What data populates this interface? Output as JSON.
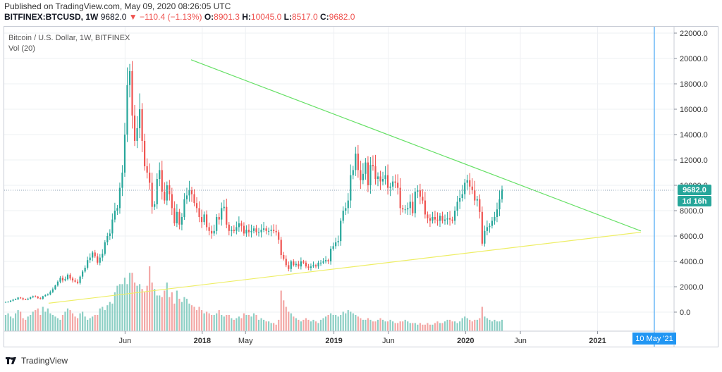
{
  "header": {
    "published": "Published on TradingView.com, May 09, 2020 08:26:05 UTC",
    "symbol": "BITFINEX:BTCUSD, 1W",
    "last": "9682.0",
    "change": "−110.4 (−1.13%)",
    "o_label": "O:",
    "o_val": "8901.3",
    "h_label": "H:",
    "h_val": "10045.0",
    "l_label": "L:",
    "l_val": "8517.0",
    "c_label": "C:",
    "c_val": "9682.0"
  },
  "legend": {
    "title": "Bitcoin / U.S. Dollar, 1W, BITFINEX",
    "vol": "Vol (20)"
  },
  "price_badge": "9682.0",
  "countdown_badge": "1d 16h",
  "cursor_date": "10 May '21",
  "footer": {
    "brand": "TradingView"
  },
  "colors": {
    "up": "#26a69a",
    "down": "#ef5350",
    "up_vol": "#8ccfc4",
    "down_vol": "#f3a7a5",
    "trend_upper": "#66e066",
    "trend_lower": "#eeee66",
    "accent": "#2196f3"
  },
  "chart_data": {
    "type": "candlestick",
    "title": "Bitcoin / U.S. Dollar, 1W, BITFINEX",
    "y_ticks": [
      "22000.0",
      "20000.0",
      "18000.0",
      "16000.0",
      "14000.0",
      "12000.0",
      "10000.0",
      "8000.0",
      "6000.0",
      "4000.0",
      "2000.0",
      "0.0"
    ],
    "x_ticks": [
      "Jun",
      "2018",
      "May",
      "2019",
      "Jun",
      "2020",
      "Jun",
      "2021"
    ],
    "ylim": [
      -1500,
      22500
    ],
    "grid": true,
    "key_points": [
      {
        "date": "2016-11",
        "price": 750
      },
      {
        "date": "2017-06",
        "price": 2700
      },
      {
        "date": "2017-12",
        "price": 19800
      },
      {
        "date": "2018-02",
        "price": 7000
      },
      {
        "date": "2018-06",
        "price": 6200
      },
      {
        "date": "2018-12",
        "price": 3200
      },
      {
        "date": "2019-06",
        "price": 13800
      },
      {
        "date": "2019-12",
        "price": 6500
      },
      {
        "date": "2020-02",
        "price": 10400
      },
      {
        "date": "2020-03",
        "price": 4000
      },
      {
        "date": "2020-05",
        "price": 9682
      }
    ],
    "series": [
      {
        "values": [
          800,
          820,
          900,
          980,
          1000,
          1150,
          1100,
          1000,
          980,
          1050,
          1180,
          1250,
          1200,
          1100,
          1050,
          1250,
          1350,
          1400,
          1600,
          1800,
          2100,
          2400,
          2700,
          2500,
          2600,
          2950,
          2650,
          2500,
          2400,
          2300,
          2800,
          3200,
          3500,
          4100,
          4300,
          4700,
          4400,
          3900,
          4300,
          4600,
          5500,
          6000,
          6200,
          7300,
          8000,
          8200,
          9800,
          11000,
          14000,
          17900,
          19000,
          15500,
          13500,
          14500,
          16000,
          13500,
          11500,
          11000,
          10200,
          8300,
          8500,
          10500,
          11200,
          9500,
          8800,
          10000,
          9300,
          8200,
          7000,
          7900,
          6900,
          7500,
          8900,
          9200,
          9600,
          9300,
          8600,
          8200,
          7500,
          7100,
          7700,
          6700,
          6400,
          6200,
          6400,
          7500,
          7300,
          8200,
          8300,
          6900,
          6400,
          6500,
          6400,
          6700,
          7000,
          6800,
          6200,
          6500,
          6300,
          6400,
          6600,
          6300,
          6300,
          6500,
          6600,
          6400,
          6400,
          6500,
          6400,
          6300,
          5700,
          4500,
          4200,
          3700,
          3400,
          4000,
          3700,
          3800,
          3600,
          4000,
          3900,
          3600,
          3500,
          3600,
          3700,
          3600,
          3900,
          3900,
          4000,
          4100,
          4000,
          5000,
          5200,
          5500,
          5600,
          7200,
          8000,
          8200,
          8800,
          10800,
          11200,
          12500,
          11200,
          10400,
          10900,
          11800,
          10000,
          11600,
          11500,
          10500,
          10700,
          10300,
          10500,
          10800,
          9800,
          9900,
          10300,
          10200,
          9800,
          8200,
          8100,
          8100,
          8200,
          8700,
          7800,
          9500,
          9600,
          9100,
          8800,
          7700,
          7400,
          7200,
          7500,
          7300,
          7200,
          7600,
          7200,
          7300,
          7400,
          7300,
          7200,
          8000,
          8700,
          9000,
          9300,
          10200,
          10400,
          9900,
          9600,
          8800,
          8900,
          7900,
          5400,
          6400,
          6700,
          6800,
          7200,
          7500,
          8100,
          8900,
          9682
        ]
      },
      {
        "name": "Vol (20)",
        "values": [
          1000,
          1100,
          900,
          800,
          1100,
          1300,
          1200,
          800,
          700,
          900,
          1000,
          1200,
          1300,
          1400,
          1000,
          1500,
          1200,
          1400,
          1100,
          1000,
          900,
          800,
          700,
          1000,
          1200,
          1400,
          1300,
          1100,
          900,
          800,
          1100,
          1200,
          900,
          700,
          800,
          900,
          1000,
          1000,
          1400,
          1500,
          1300,
          1600,
          1800,
          1700,
          2400,
          2800,
          2900,
          2900,
          3300,
          2900,
          3600,
          3600,
          3000,
          2800,
          2900,
          2600,
          2400,
          2800,
          4000,
          3000,
          2600,
          2200,
          2200,
          2100,
          2500,
          3000,
          2100,
          2400,
          1700,
          2500,
          2000,
          1800,
          2100,
          2000,
          1700,
          1600,
          1500,
          1300,
          1500,
          1300,
          1100,
          1200,
          1100,
          1000,
          1000,
          1100,
          1300,
          1000,
          900,
          1000,
          1000,
          800,
          700,
          800,
          900,
          800,
          1100,
          1000,
          1000,
          900,
          1100,
          1000,
          700,
          800,
          700,
          600,
          600,
          500,
          500,
          400,
          700,
          2500,
          1900,
          1500,
          1200,
          1100,
          900,
          800,
          700,
          600,
          700,
          800,
          700,
          600,
          700,
          600,
          500,
          700,
          800,
          900,
          1000,
          1100,
          1000,
          1000,
          900,
          1000,
          1200,
          1100,
          1300,
          1200,
          1100,
          1000,
          900,
          800,
          700,
          700,
          800,
          700,
          600,
          600,
          700,
          800,
          700,
          600,
          600,
          700,
          600,
          500,
          500,
          600,
          600,
          700,
          600,
          500,
          500,
          500,
          400,
          500,
          400,
          400,
          500,
          400,
          400,
          500,
          600,
          500,
          500,
          600,
          700,
          700,
          600,
          600,
          500,
          600,
          800,
          900,
          800,
          700,
          600,
          700,
          700,
          800,
          1500,
          900,
          800,
          700,
          600,
          700,
          600,
          600,
          700,
          700
        ]
      }
    ],
    "trendlines": [
      {
        "from": {
          "date": "2017-12",
          "price": 19900
        },
        "to": {
          "date": "2021-05",
          "price": 6400
        }
      },
      {
        "from": {
          "date": "2016-11",
          "price": 700
        },
        "to": {
          "date": "2021-05",
          "price": 6300
        }
      }
    ]
  }
}
